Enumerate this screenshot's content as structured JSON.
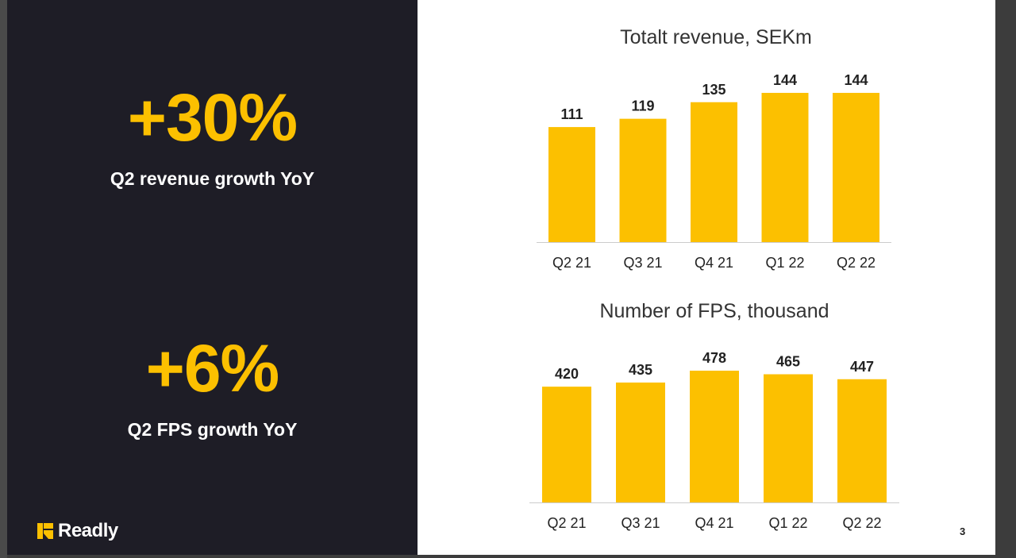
{
  "kpis": [
    {
      "value": "+30%",
      "label": "Q2 revenue growth YoY"
    },
    {
      "value": "+6%",
      "label": "Q2 FPS growth YoY"
    }
  ],
  "logo": {
    "text": "Readly"
  },
  "page_number": "3",
  "colors": {
    "accent": "#fcc000",
    "panel": "#1e1d26",
    "axis": "#cccccc"
  },
  "chart_data": [
    {
      "type": "bar",
      "title": "Totalt revenue, SEKm",
      "categories": [
        "Q2 21",
        "Q3 21",
        "Q4 21",
        "Q1 22",
        "Q2 22"
      ],
      "values": [
        111,
        119,
        135,
        144,
        144
      ],
      "xlabel": "",
      "ylabel": "",
      "ylim": [
        0,
        144
      ]
    },
    {
      "type": "bar",
      "title": "Number of FPS, thousand",
      "categories": [
        "Q2 21",
        "Q3 21",
        "Q4 21",
        "Q1 22",
        "Q2 22"
      ],
      "values": [
        420,
        435,
        478,
        465,
        447
      ],
      "xlabel": "",
      "ylabel": "",
      "ylim": [
        0,
        478
      ]
    }
  ]
}
